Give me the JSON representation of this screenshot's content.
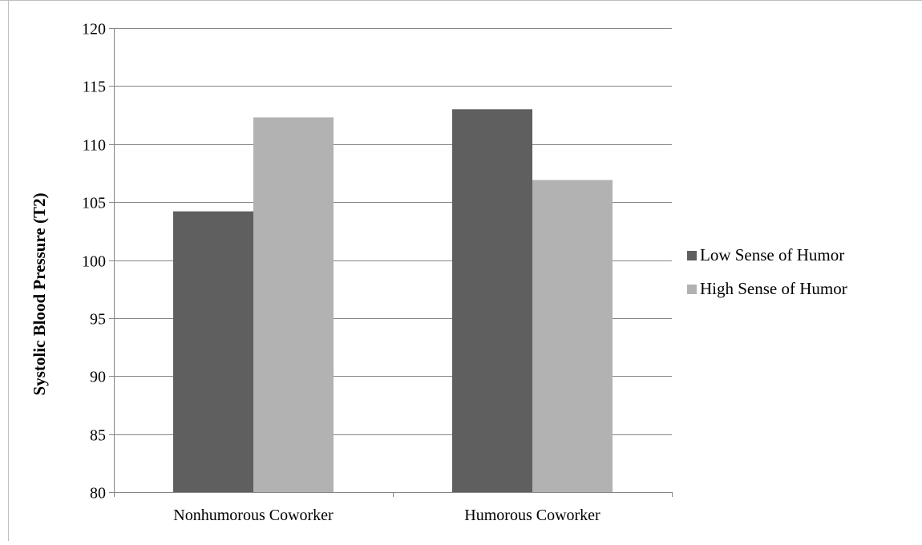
{
  "chart_data": {
    "type": "bar",
    "title": "",
    "xlabel": "",
    "ylabel": "Systolic Blood Pressure (T2)",
    "categories": [
      "Nonhumorous Coworker",
      "Humorous Coworker"
    ],
    "series": [
      {
        "name": "Low Sense of Humor",
        "values": [
          104.2,
          113.0
        ],
        "color": "#5f5f5f"
      },
      {
        "name": "High Sense of Humor",
        "values": [
          112.3,
          106.9
        ],
        "color": "#b2b2b2"
      }
    ],
    "ylim": [
      80,
      120
    ],
    "yticks": [
      "80",
      "85",
      "90",
      "95",
      "100",
      "105",
      "110",
      "115",
      "120"
    ],
    "grid": true,
    "legend_position": "right"
  }
}
